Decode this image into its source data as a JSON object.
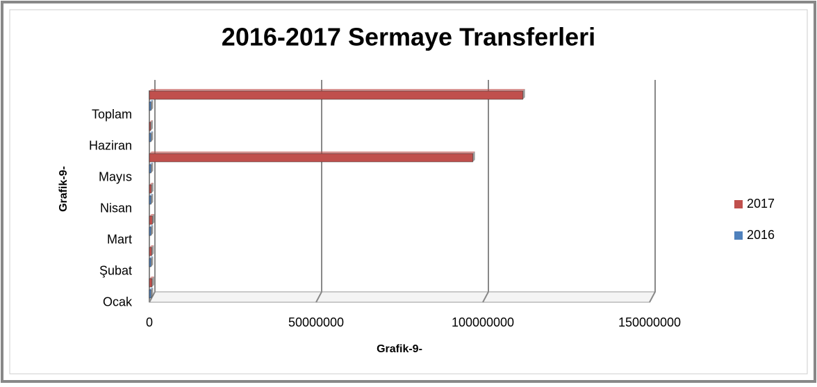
{
  "chart_data": {
    "type": "bar",
    "orientation": "horizontal",
    "title": "2016-2017 Sermaye Transferleri",
    "x_label": "Grafik-9-",
    "y_label": "Grafik-9-",
    "categories": [
      "Ocak",
      "Şubat",
      "Mart",
      "Nisan",
      "Mayıs",
      "Haziran",
      "Toplam"
    ],
    "series": [
      {
        "name": "2017",
        "color": "#c0504d",
        "values": [
          800000,
          700000,
          900000,
          600000,
          97000000,
          400000,
          112000000
        ]
      },
      {
        "name": "2016",
        "color": "#4f81bd",
        "values": [
          500000,
          500000,
          500000,
          500000,
          500000,
          500000,
          500000
        ]
      }
    ],
    "xlim": [
      0,
      150000000
    ],
    "xticks": [
      0,
      50000000,
      100000000,
      150000000
    ],
    "grid": true,
    "legend": "right"
  }
}
